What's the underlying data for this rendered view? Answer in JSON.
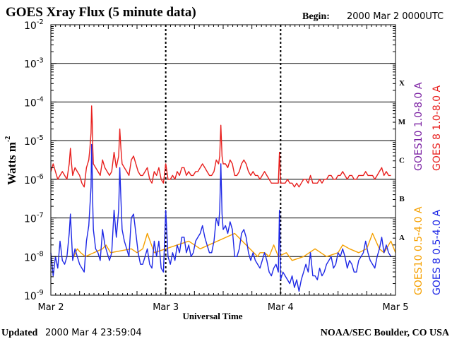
{
  "chart_data": {
    "type": "line",
    "title": "GOES Xray Flux (5 minute data)",
    "begin_label": "Begin:",
    "begin_value": "2000 Mar 2 0000UTC",
    "xlabel": "Universal Time",
    "ylabel_main": "Watts m",
    "ylabel_exp": "-2",
    "x_ticks": [
      "Mar 2",
      "Mar 3",
      "Mar 4",
      "Mar 5"
    ],
    "xlim_days": [
      0,
      3
    ],
    "ylim_log10": [
      -9,
      -2
    ],
    "y_ticks": [
      {
        "base": "10",
        "exp": "-2",
        "log": -2
      },
      {
        "base": "10",
        "exp": "-3",
        "log": -3
      },
      {
        "base": "10",
        "exp": "-4",
        "log": -4
      },
      {
        "base": "10",
        "exp": "-5",
        "log": -5
      },
      {
        "base": "10",
        "exp": "-6",
        "log": -6
      },
      {
        "base": "10",
        "exp": "-7",
        "log": -7
      },
      {
        "base": "10",
        "exp": "-8",
        "log": -8
      },
      {
        "base": "10",
        "exp": "-9",
        "log": -9
      }
    ],
    "flare_classes": [
      {
        "label": "X",
        "log": -3.5
      },
      {
        "label": "M",
        "log": -4.5
      },
      {
        "label": "C",
        "log": -5.5
      },
      {
        "label": "B",
        "log": -6.5
      },
      {
        "label": "A",
        "log": -7.5
      }
    ],
    "legend": [
      {
        "name": "GOES10 1.0-8.0 A",
        "color": "#7a1fa2"
      },
      {
        "name": "GOES 8 1.0-8.0 A",
        "color": "#e8201e"
      },
      {
        "name": "GOES10 0.5-4.0 A",
        "color": "#f5a000"
      },
      {
        "name": "GOES 8 0.5-4.0 A",
        "color": "#1e28e6"
      }
    ],
    "series": [
      {
        "name": "GOES 8 1.0-8.0 A",
        "color": "#e8201e",
        "x_days": [
          0.0,
          0.02,
          0.04,
          0.06,
          0.08,
          0.1,
          0.12,
          0.14,
          0.16,
          0.17,
          0.18,
          0.19,
          0.21,
          0.23,
          0.25,
          0.27,
          0.29,
          0.31,
          0.33,
          0.34,
          0.35,
          0.355,
          0.36,
          0.365,
          0.37,
          0.39,
          0.41,
          0.43,
          0.45,
          0.47,
          0.49,
          0.51,
          0.53,
          0.55,
          0.57,
          0.59,
          0.6,
          0.61,
          0.62,
          0.64,
          0.66,
          0.68,
          0.7,
          0.72,
          0.74,
          0.76,
          0.78,
          0.8,
          0.82,
          0.84,
          0.86,
          0.88,
          0.9,
          0.92,
          0.94,
          0.96,
          0.98,
          1.0,
          1.02,
          1.04,
          1.06,
          1.08,
          1.1,
          1.12,
          1.14,
          1.16,
          1.18,
          1.2,
          1.22,
          1.24,
          1.26,
          1.28,
          1.3,
          1.32,
          1.34,
          1.36,
          1.38,
          1.4,
          1.42,
          1.44,
          1.46,
          1.47,
          1.48,
          1.49,
          1.5,
          1.52,
          1.54,
          1.56,
          1.58,
          1.6,
          1.62,
          1.64,
          1.66,
          1.68,
          1.7,
          1.72,
          1.74,
          1.76,
          1.78,
          1.8,
          1.82,
          1.84,
          1.86,
          1.88,
          1.9,
          1.92,
          1.94,
          1.96,
          1.98,
          1.99,
          2.0,
          2.02,
          2.04,
          2.06,
          2.08,
          2.1,
          2.12,
          2.14,
          2.16,
          2.18,
          2.2,
          2.22,
          2.24,
          2.26,
          2.28,
          2.3,
          2.32,
          2.34,
          2.36,
          2.38,
          2.4,
          2.42,
          2.44,
          2.46,
          2.48,
          2.5,
          2.52,
          2.54,
          2.56,
          2.58,
          2.6,
          2.62,
          2.64,
          2.66,
          2.68,
          2.7,
          2.72,
          2.74,
          2.76,
          2.78,
          2.8,
          2.82,
          2.84,
          2.86,
          2.88,
          2.9,
          2.92,
          2.94,
          2.96,
          2.98,
          3.0
        ],
        "log_flux": [
          -5.8,
          -5.6,
          -5.8,
          -6.0,
          -5.9,
          -5.8,
          -5.9,
          -6.0,
          -5.6,
          -5.2,
          -5.6,
          -5.9,
          -5.7,
          -5.8,
          -5.9,
          -6.1,
          -6.2,
          -5.7,
          -5.5,
          -5.2,
          -4.8,
          -4.1,
          -4.5,
          -5.2,
          -5.6,
          -5.7,
          -5.8,
          -5.9,
          -5.5,
          -5.7,
          -5.8,
          -5.9,
          -5.8,
          -5.3,
          -5.7,
          -5.4,
          -4.7,
          -5.2,
          -5.6,
          -5.7,
          -5.8,
          -5.9,
          -5.5,
          -5.4,
          -5.6,
          -5.8,
          -5.9,
          -5.9,
          -5.8,
          -5.7,
          -6.0,
          -6.1,
          -5.8,
          -5.9,
          -5.7,
          -6.0,
          -6.1,
          -5.6,
          -6.0,
          -6.0,
          -5.9,
          -6.0,
          -5.8,
          -5.9,
          -5.7,
          -5.7,
          -5.9,
          -5.8,
          -5.9,
          -5.9,
          -5.8,
          -5.8,
          -5.7,
          -5.6,
          -5.7,
          -5.8,
          -5.9,
          -5.9,
          -5.8,
          -5.5,
          -5.6,
          -5.4,
          -4.6,
          -5.4,
          -5.6,
          -5.6,
          -5.7,
          -5.5,
          -5.6,
          -5.9,
          -5.9,
          -5.8,
          -5.6,
          -5.5,
          -5.6,
          -5.8,
          -5.9,
          -5.8,
          -5.9,
          -5.9,
          -6.0,
          -5.9,
          -5.8,
          -5.9,
          -6.0,
          -6.1,
          -6.1,
          -6.1,
          -6.1,
          -5.3,
          -6.1,
          -6.1,
          -6.1,
          -6.0,
          -6.1,
          -6.1,
          -6.2,
          -6.1,
          -6.2,
          -6.1,
          -6.0,
          -6.0,
          -6.1,
          -5.9,
          -6.1,
          -6.1,
          -6.1,
          -6.0,
          -6.1,
          -6.0,
          -6.0,
          -5.9,
          -5.9,
          -6.0,
          -6.0,
          -5.9,
          -5.9,
          -5.8,
          -5.9,
          -6.0,
          -5.9,
          -5.9,
          -6.0,
          -6.0,
          -5.9,
          -5.9,
          -5.9,
          -5.8,
          -5.9,
          -5.9,
          -5.9,
          -6.0,
          -5.9,
          -5.8,
          -5.7,
          -5.9,
          -5.8,
          -5.9,
          -5.9
        ]
      },
      {
        "name": "GOES 8 0.5-4.0 A",
        "color": "#1e28e6",
        "x_days": [
          0.0,
          0.02,
          0.04,
          0.06,
          0.08,
          0.1,
          0.12,
          0.14,
          0.16,
          0.17,
          0.18,
          0.19,
          0.21,
          0.23,
          0.25,
          0.27,
          0.29,
          0.31,
          0.33,
          0.34,
          0.35,
          0.355,
          0.36,
          0.365,
          0.37,
          0.39,
          0.41,
          0.43,
          0.45,
          0.47,
          0.49,
          0.51,
          0.53,
          0.55,
          0.57,
          0.59,
          0.6,
          0.61,
          0.62,
          0.64,
          0.66,
          0.68,
          0.7,
          0.72,
          0.74,
          0.76,
          0.78,
          0.8,
          0.82,
          0.84,
          0.86,
          0.88,
          0.9,
          0.92,
          0.94,
          0.96,
          0.98,
          1.0,
          1.02,
          1.04,
          1.06,
          1.08,
          1.1,
          1.12,
          1.14,
          1.16,
          1.18,
          1.2,
          1.22,
          1.24,
          1.26,
          1.28,
          1.3,
          1.32,
          1.34,
          1.36,
          1.38,
          1.4,
          1.42,
          1.44,
          1.46,
          1.47,
          1.48,
          1.49,
          1.5,
          1.52,
          1.54,
          1.56,
          1.58,
          1.6,
          1.62,
          1.64,
          1.66,
          1.68,
          1.7,
          1.72,
          1.74,
          1.76,
          1.78,
          1.8,
          1.82,
          1.84,
          1.86,
          1.88,
          1.9,
          1.92,
          1.94,
          1.96,
          1.98,
          1.99,
          2.0,
          2.02,
          2.04,
          2.06,
          2.08,
          2.1,
          2.12,
          2.14,
          2.16,
          2.18,
          2.2,
          2.22,
          2.24,
          2.26,
          2.28,
          2.3,
          2.32,
          2.34,
          2.36,
          2.38,
          2.4,
          2.42,
          2.44,
          2.46,
          2.48,
          2.5,
          2.52,
          2.54,
          2.56,
          2.58,
          2.6,
          2.62,
          2.64,
          2.66,
          2.68,
          2.7,
          2.72,
          2.74,
          2.76,
          2.78,
          2.8,
          2.82,
          2.84,
          2.86,
          2.88,
          2.9,
          2.92,
          2.94,
          2.96,
          2.98,
          3.0
        ],
        "log_flux": [
          -7.9,
          -8.5,
          -8.0,
          -8.3,
          -7.6,
          -8.1,
          -8.2,
          -8.0,
          -7.4,
          -6.9,
          -7.5,
          -8.1,
          -7.8,
          -8.0,
          -8.2,
          -8.3,
          -8.4,
          -7.6,
          -7.2,
          -6.7,
          -6.2,
          -5.1,
          -5.8,
          -6.7,
          -7.3,
          -7.8,
          -7.9,
          -8.1,
          -7.3,
          -7.7,
          -7.9,
          -8.1,
          -7.9,
          -6.8,
          -7.5,
          -6.8,
          -5.7,
          -6.5,
          -7.3,
          -7.6,
          -7.8,
          -8.0,
          -7.0,
          -6.9,
          -7.4,
          -7.9,
          -8.2,
          -8.2,
          -8.0,
          -7.8,
          -8.2,
          -8.3,
          -7.6,
          -8.0,
          -7.6,
          -8.3,
          -8.4,
          -6.8,
          -8.0,
          -8.2,
          -7.9,
          -8.1,
          -7.7,
          -7.9,
          -7.5,
          -7.5,
          -7.9,
          -7.7,
          -8.0,
          -7.9,
          -7.6,
          -7.5,
          -7.4,
          -7.2,
          -7.5,
          -7.7,
          -7.9,
          -7.9,
          -7.6,
          -7.0,
          -7.2,
          -6.8,
          -5.6,
          -6.9,
          -7.3,
          -7.2,
          -7.4,
          -7.1,
          -7.3,
          -8.0,
          -8.0,
          -7.8,
          -7.4,
          -7.3,
          -7.5,
          -7.9,
          -8.1,
          -7.9,
          -8.1,
          -8.2,
          -8.3,
          -8.1,
          -7.9,
          -8.1,
          -8.4,
          -8.5,
          -8.3,
          -8.2,
          -8.4,
          -6.8,
          -8.6,
          -8.4,
          -8.5,
          -8.6,
          -8.7,
          -8.5,
          -8.8,
          -8.6,
          -8.9,
          -8.6,
          -8.4,
          -8.2,
          -8.4,
          -7.9,
          -8.5,
          -8.5,
          -8.6,
          -8.3,
          -8.5,
          -8.4,
          -8.2,
          -8.1,
          -8.0,
          -8.3,
          -8.2,
          -7.9,
          -8.0,
          -7.8,
          -8.0,
          -8.3,
          -8.1,
          -8.2,
          -8.4,
          -8.4,
          -8.1,
          -8.0,
          -7.9,
          -7.6,
          -7.9,
          -8.1,
          -8.2,
          -8.3,
          -8.0,
          -7.8,
          -7.5,
          -7.9,
          -7.7,
          -7.9,
          -8.0
        ]
      },
      {
        "name": "GOES10 0.5-4.0 A",
        "color": "#f5a000",
        "x_days": [
          0.2,
          0.23,
          0.26,
          0.3,
          0.45,
          0.48,
          0.52,
          0.7,
          0.75,
          0.8,
          0.84,
          0.9,
          1.2,
          1.3,
          1.6,
          1.7,
          1.8,
          1.82,
          1.86,
          1.9,
          1.94,
          1.98,
          2.05,
          2.1,
          2.2,
          2.3,
          2.4,
          2.5,
          2.54,
          2.6,
          2.68,
          2.75,
          2.8,
          2.86,
          2.9,
          2.96,
          3.0
        ],
        "log_flux": [
          -8.0,
          -7.8,
          -7.9,
          -8.0,
          -7.8,
          -7.7,
          -7.9,
          -7.8,
          -7.9,
          -7.8,
          -7.4,
          -7.9,
          -7.6,
          -7.8,
          -7.4,
          -7.7,
          -8.0,
          -7.9,
          -7.9,
          -8.0,
          -7.7,
          -8.0,
          -7.9,
          -8.1,
          -8.0,
          -7.8,
          -8.0,
          -7.9,
          -7.7,
          -7.8,
          -7.9,
          -7.8,
          -7.4,
          -7.8,
          -7.9,
          -7.6,
          -7.9
        ]
      }
    ]
  },
  "footer": {
    "updated_label": "Updated",
    "updated_value": "2000 Mar  4 23:59:04",
    "credit": "NOAA/SEC Boulder, CO USA"
  }
}
